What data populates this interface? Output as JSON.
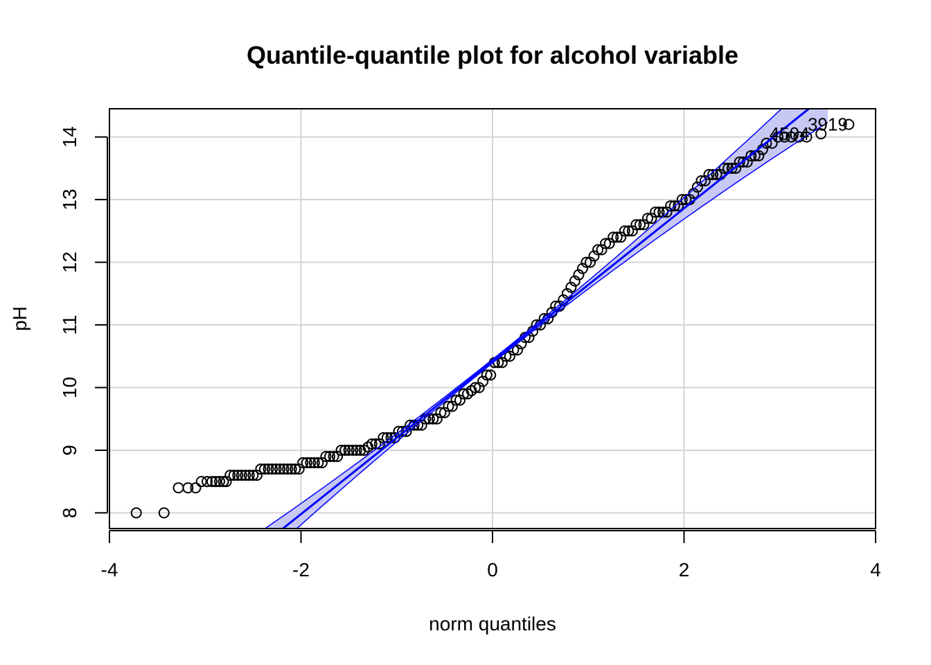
{
  "chart_data": {
    "type": "scatter",
    "title": "Quantile-quantile plot for alcohol variable",
    "xlabel": "norm quantiles",
    "ylabel": "pH",
    "xlim": [
      -4,
      4
    ],
    "ylim": [
      7.75,
      14.45
    ],
    "x_ticks": [
      -4,
      -2,
      0,
      2,
      4
    ],
    "x_tick_labels": [
      "-4",
      "-2",
      "0",
      "2",
      "4"
    ],
    "y_ticks": [
      8,
      9,
      10,
      11,
      12,
      13,
      14
    ],
    "y_tick_labels": [
      "8",
      "9",
      "10",
      "11",
      "12",
      "13",
      "14"
    ],
    "grid": true,
    "colors": {
      "points": "#000000",
      "reference_line": "#0000ff",
      "confidence_band": "#c8c8f5",
      "grid": "#d3d3d3"
    },
    "reference_line": {
      "intercept": 10.42,
      "slope": 1.22
    },
    "confidence_band": {
      "half_width_at_zero": 0.03,
      "growth": 0.035
    },
    "points": [
      [
        -3.72,
        8.0
      ],
      [
        -3.43,
        8.0
      ],
      [
        -3.28,
        8.4
      ],
      [
        -3.18,
        8.4
      ],
      [
        -3.1,
        8.4
      ],
      [
        -3.04,
        8.5
      ],
      [
        -2.98,
        8.5
      ],
      [
        -2.93,
        8.5
      ],
      [
        -2.89,
        8.5
      ],
      [
        -2.85,
        8.5
      ],
      [
        -2.81,
        8.5
      ],
      [
        -2.78,
        8.5
      ],
      [
        -2.74,
        8.6
      ],
      [
        -2.7,
        8.6
      ],
      [
        -2.66,
        8.6
      ],
      [
        -2.62,
        8.6
      ],
      [
        -2.58,
        8.6
      ],
      [
        -2.54,
        8.6
      ],
      [
        -2.5,
        8.6
      ],
      [
        -2.46,
        8.6
      ],
      [
        -2.42,
        8.7
      ],
      [
        -2.38,
        8.7
      ],
      [
        -2.34,
        8.7
      ],
      [
        -2.3,
        8.7
      ],
      [
        -2.26,
        8.7
      ],
      [
        -2.22,
        8.7
      ],
      [
        -2.18,
        8.7
      ],
      [
        -2.14,
        8.7
      ],
      [
        -2.1,
        8.7
      ],
      [
        -2.06,
        8.7
      ],
      [
        -2.02,
        8.7
      ],
      [
        -1.98,
        8.8
      ],
      [
        -1.94,
        8.8
      ],
      [
        -1.9,
        8.8
      ],
      [
        -1.86,
        8.8
      ],
      [
        -1.82,
        8.8
      ],
      [
        -1.78,
        8.8
      ],
      [
        -1.74,
        8.9
      ],
      [
        -1.7,
        8.9
      ],
      [
        -1.66,
        8.9
      ],
      [
        -1.62,
        8.9
      ],
      [
        -1.58,
        9.0
      ],
      [
        -1.54,
        9.0
      ],
      [
        -1.5,
        9.0
      ],
      [
        -1.46,
        9.0
      ],
      [
        -1.42,
        9.0
      ],
      [
        -1.38,
        9.0
      ],
      [
        -1.34,
        9.0
      ],
      [
        -1.3,
        9.05
      ],
      [
        -1.26,
        9.1
      ],
      [
        -1.22,
        9.1
      ],
      [
        -1.18,
        9.1
      ],
      [
        -1.14,
        9.2
      ],
      [
        -1.1,
        9.2
      ],
      [
        -1.06,
        9.2
      ],
      [
        -1.02,
        9.2
      ],
      [
        -0.98,
        9.3
      ],
      [
        -0.94,
        9.3
      ],
      [
        -0.9,
        9.3
      ],
      [
        -0.86,
        9.4
      ],
      [
        -0.82,
        9.4
      ],
      [
        -0.78,
        9.4
      ],
      [
        -0.74,
        9.4
      ],
      [
        -0.7,
        9.5
      ],
      [
        -0.66,
        9.5
      ],
      [
        -0.62,
        9.5
      ],
      [
        -0.58,
        9.5
      ],
      [
        -0.54,
        9.6
      ],
      [
        -0.5,
        9.6
      ],
      [
        -0.46,
        9.7
      ],
      [
        -0.42,
        9.7
      ],
      [
        -0.38,
        9.8
      ],
      [
        -0.34,
        9.8
      ],
      [
        -0.3,
        9.9
      ],
      [
        -0.26,
        9.9
      ],
      [
        -0.22,
        9.95
      ],
      [
        -0.18,
        10.0
      ],
      [
        -0.14,
        10.0
      ],
      [
        -0.1,
        10.1
      ],
      [
        -0.06,
        10.2
      ],
      [
        -0.02,
        10.2
      ],
      [
        0.02,
        10.4
      ],
      [
        0.06,
        10.4
      ],
      [
        0.1,
        10.4
      ],
      [
        0.14,
        10.5
      ],
      [
        0.18,
        10.5
      ],
      [
        0.22,
        10.6
      ],
      [
        0.26,
        10.6
      ],
      [
        0.3,
        10.7
      ],
      [
        0.34,
        10.8
      ],
      [
        0.38,
        10.8
      ],
      [
        0.42,
        10.9
      ],
      [
        0.46,
        11.0
      ],
      [
        0.5,
        11.0
      ],
      [
        0.54,
        11.1
      ],
      [
        0.58,
        11.1
      ],
      [
        0.62,
        11.2
      ],
      [
        0.66,
        11.3
      ],
      [
        0.7,
        11.3
      ],
      [
        0.74,
        11.4
      ],
      [
        0.78,
        11.5
      ],
      [
        0.82,
        11.6
      ],
      [
        0.86,
        11.7
      ],
      [
        0.9,
        11.8
      ],
      [
        0.94,
        11.9
      ],
      [
        0.98,
        12.0
      ],
      [
        1.02,
        12.0
      ],
      [
        1.06,
        12.1
      ],
      [
        1.1,
        12.2
      ],
      [
        1.14,
        12.2
      ],
      [
        1.18,
        12.3
      ],
      [
        1.22,
        12.3
      ],
      [
        1.26,
        12.4
      ],
      [
        1.3,
        12.4
      ],
      [
        1.34,
        12.4
      ],
      [
        1.38,
        12.5
      ],
      [
        1.42,
        12.5
      ],
      [
        1.46,
        12.5
      ],
      [
        1.5,
        12.6
      ],
      [
        1.54,
        12.6
      ],
      [
        1.58,
        12.6
      ],
      [
        1.62,
        12.7
      ],
      [
        1.66,
        12.7
      ],
      [
        1.7,
        12.8
      ],
      [
        1.74,
        12.8
      ],
      [
        1.78,
        12.8
      ],
      [
        1.82,
        12.8
      ],
      [
        1.86,
        12.9
      ],
      [
        1.9,
        12.9
      ],
      [
        1.94,
        12.9
      ],
      [
        1.98,
        13.0
      ],
      [
        2.02,
        13.0
      ],
      [
        2.06,
        13.0
      ],
      [
        2.1,
        13.1
      ],
      [
        2.14,
        13.2
      ],
      [
        2.18,
        13.3
      ],
      [
        2.22,
        13.3
      ],
      [
        2.26,
        13.4
      ],
      [
        2.3,
        13.4
      ],
      [
        2.34,
        13.4
      ],
      [
        2.38,
        13.4
      ],
      [
        2.42,
        13.5
      ],
      [
        2.46,
        13.5
      ],
      [
        2.5,
        13.5
      ],
      [
        2.54,
        13.5
      ],
      [
        2.58,
        13.6
      ],
      [
        2.62,
        13.6
      ],
      [
        2.66,
        13.6
      ],
      [
        2.7,
        13.7
      ],
      [
        2.74,
        13.7
      ],
      [
        2.78,
        13.7
      ],
      [
        2.82,
        13.8
      ],
      [
        2.86,
        13.9
      ],
      [
        2.92,
        13.9
      ],
      [
        2.98,
        14.0
      ],
      [
        3.05,
        14.0
      ],
      [
        3.12,
        14.0
      ],
      [
        3.2,
        14.0
      ],
      [
        3.28,
        14.0
      ],
      [
        3.43,
        14.05
      ],
      [
        3.72,
        14.2
      ]
    ],
    "annotations": [
      {
        "text": "3919",
        "x": 3.5,
        "y": 14.2
      },
      {
        "text": "4504",
        "x": 3.1,
        "y": 14.05
      }
    ]
  }
}
